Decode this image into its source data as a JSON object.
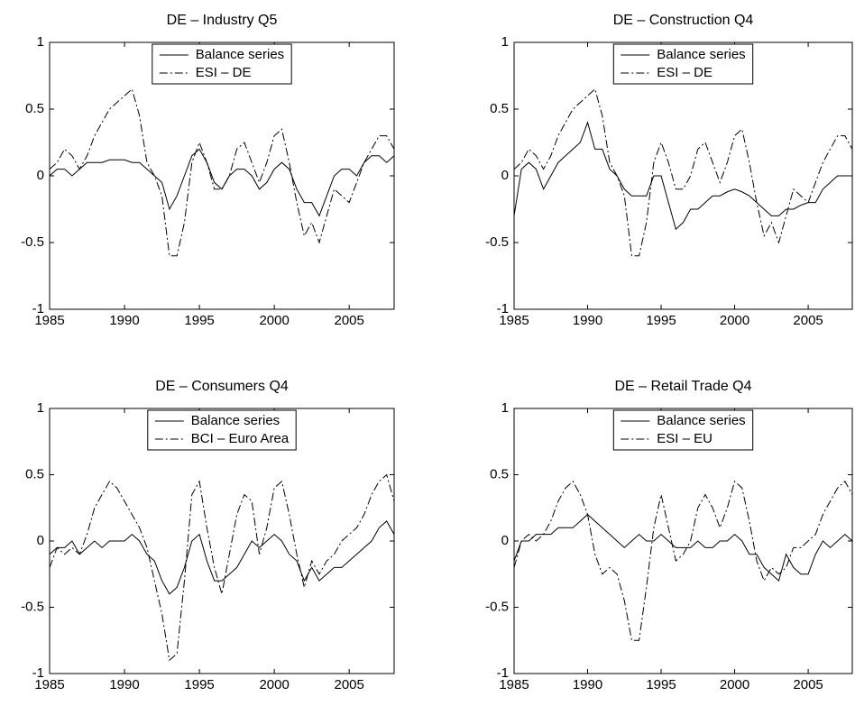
{
  "chart_data": [
    {
      "type": "line",
      "title": "DE – Industry Q5",
      "x": [
        1985,
        1985.5,
        1986,
        1986.5,
        1987,
        1987.5,
        1988,
        1988.5,
        1989,
        1989.5,
        1990,
        1990.5,
        1991,
        1991.5,
        1992,
        1992.5,
        1993,
        1993.5,
        1994,
        1994.5,
        1995,
        1995.5,
        1996,
        1996.5,
        1997,
        1997.5,
        1998,
        1998.5,
        1999,
        1999.5,
        2000,
        2000.5,
        2001,
        2001.5,
        2002,
        2002.5,
        2003,
        2003.5,
        2004,
        2004.5,
        2005,
        2005.5,
        2006,
        2006.5,
        2007,
        2007.5,
        2008
      ],
      "series": [
        {
          "name": "Balance series",
          "color": "#000000",
          "dash": "solid",
          "values": [
            0.0,
            0.05,
            0.05,
            0.0,
            0.05,
            0.1,
            0.1,
            0.1,
            0.12,
            0.12,
            0.12,
            0.1,
            0.1,
            0.05,
            0.0,
            -0.05,
            -0.25,
            -0.15,
            0.0,
            0.15,
            0.2,
            0.1,
            -0.05,
            -0.1,
            0.0,
            0.05,
            0.05,
            0.0,
            -0.1,
            -0.05,
            0.05,
            0.1,
            0.05,
            -0.1,
            -0.2,
            -0.2,
            -0.3,
            -0.15,
            0.0,
            0.05,
            0.05,
            0.0,
            0.1,
            0.15,
            0.15,
            0.1,
            0.15
          ]
        },
        {
          "name": "ESI – DE",
          "color": "#000000",
          "dash": "dashdot",
          "values": [
            0.05,
            0.1,
            0.2,
            0.15,
            0.05,
            0.15,
            0.3,
            0.4,
            0.5,
            0.55,
            0.6,
            0.65,
            0.45,
            0.1,
            0.0,
            -0.15,
            -0.6,
            -0.6,
            -0.35,
            0.1,
            0.25,
            0.1,
            -0.1,
            -0.1,
            0.0,
            0.2,
            0.25,
            0.1,
            -0.05,
            0.1,
            0.3,
            0.35,
            0.1,
            -0.2,
            -0.45,
            -0.35,
            -0.5,
            -0.3,
            -0.1,
            -0.15,
            -0.2,
            -0.05,
            0.1,
            0.2,
            0.3,
            0.3,
            0.2
          ]
        }
      ],
      "xlim": [
        1985,
        2008
      ],
      "xticks": [
        1985,
        1990,
        1995,
        2000,
        2005
      ],
      "ylim": [
        -1,
        1
      ],
      "yticks": [
        -1,
        -0.5,
        0,
        0.5,
        1
      ],
      "legend": "upper center"
    },
    {
      "type": "line",
      "title": "DE – Construction Q4",
      "x": [
        1985,
        1985.5,
        1986,
        1986.5,
        1987,
        1987.5,
        1988,
        1988.5,
        1989,
        1989.5,
        1990,
        1990.5,
        1991,
        1991.5,
        1992,
        1992.5,
        1993,
        1993.5,
        1994,
        1994.5,
        1995,
        1995.5,
        1996,
        1996.5,
        1997,
        1997.5,
        1998,
        1998.5,
        1999,
        1999.5,
        2000,
        2000.5,
        2001,
        2001.5,
        2002,
        2002.5,
        2003,
        2003.5,
        2004,
        2004.5,
        2005,
        2005.5,
        2006,
        2006.5,
        2007,
        2007.5,
        2008
      ],
      "series": [
        {
          "name": "Balance series",
          "color": "#000000",
          "dash": "solid",
          "values": [
            -0.3,
            0.05,
            0.1,
            0.05,
            -0.1,
            0.0,
            0.1,
            0.15,
            0.2,
            0.25,
            0.4,
            0.2,
            0.2,
            0.05,
            0.0,
            -0.1,
            -0.15,
            -0.15,
            -0.15,
            0.0,
            0.0,
            -0.2,
            -0.4,
            -0.35,
            -0.25,
            -0.25,
            -0.2,
            -0.15,
            -0.15,
            -0.12,
            -0.1,
            -0.12,
            -0.15,
            -0.2,
            -0.25,
            -0.3,
            -0.3,
            -0.25,
            -0.25,
            -0.22,
            -0.2,
            -0.2,
            -0.1,
            -0.05,
            0.0,
            0.0,
            0.0
          ]
        },
        {
          "name": "ESI – DE",
          "color": "#000000",
          "dash": "dashdot",
          "values": [
            0.05,
            0.1,
            0.2,
            0.15,
            0.05,
            0.15,
            0.3,
            0.4,
            0.5,
            0.55,
            0.6,
            0.65,
            0.45,
            0.1,
            0.0,
            -0.15,
            -0.6,
            -0.6,
            -0.35,
            0.1,
            0.25,
            0.1,
            -0.1,
            -0.1,
            0.0,
            0.2,
            0.25,
            0.1,
            -0.05,
            0.1,
            0.3,
            0.35,
            0.1,
            -0.2,
            -0.45,
            -0.35,
            -0.5,
            -0.3,
            -0.1,
            -0.15,
            -0.2,
            -0.05,
            0.1,
            0.2,
            0.3,
            0.3,
            0.2
          ]
        }
      ],
      "xlim": [
        1985,
        2008
      ],
      "xticks": [
        1985,
        1990,
        1995,
        2000,
        2005
      ],
      "ylim": [
        -1,
        1
      ],
      "yticks": [
        -1,
        -0.5,
        0,
        0.5,
        1
      ],
      "legend": "upper center"
    },
    {
      "type": "line",
      "title": "DE – Consumers Q4",
      "x": [
        1985,
        1985.5,
        1986,
        1986.5,
        1987,
        1987.5,
        1988,
        1988.5,
        1989,
        1989.5,
        1990,
        1990.5,
        1991,
        1991.5,
        1992,
        1992.5,
        1993,
        1993.5,
        1994,
        1994.5,
        1995,
        1995.5,
        1996,
        1996.5,
        1997,
        1997.5,
        1998,
        1998.5,
        1999,
        1999.5,
        2000,
        2000.5,
        2001,
        2001.5,
        2002,
        2002.5,
        2003,
        2003.5,
        2004,
        2004.5,
        2005,
        2005.5,
        2006,
        2006.5,
        2007,
        2007.5,
        2008
      ],
      "series": [
        {
          "name": "Balance series",
          "color": "#000000",
          "dash": "solid",
          "values": [
            -0.1,
            -0.05,
            -0.05,
            0.0,
            -0.1,
            -0.05,
            0.0,
            -0.05,
            0.0,
            0.0,
            0.0,
            0.05,
            0.0,
            -0.1,
            -0.15,
            -0.3,
            -0.4,
            -0.35,
            -0.2,
            0.0,
            0.05,
            -0.15,
            -0.3,
            -0.3,
            -0.25,
            -0.2,
            -0.1,
            0.0,
            -0.05,
            0.0,
            0.05,
            0.0,
            -0.1,
            -0.15,
            -0.3,
            -0.2,
            -0.3,
            -0.25,
            -0.2,
            -0.2,
            -0.15,
            -0.1,
            -0.05,
            0.0,
            0.1,
            0.15,
            0.05
          ]
        },
        {
          "name": "BCI – Euro Area",
          "color": "#000000",
          "dash": "dashdot",
          "values": [
            -0.2,
            -0.05,
            -0.1,
            -0.05,
            -0.1,
            0.05,
            0.25,
            0.35,
            0.45,
            0.4,
            0.3,
            0.2,
            0.1,
            -0.05,
            -0.3,
            -0.55,
            -0.9,
            -0.85,
            -0.3,
            0.35,
            0.45,
            0.1,
            -0.2,
            -0.4,
            -0.1,
            0.2,
            0.35,
            0.3,
            -0.1,
            0.1,
            0.4,
            0.45,
            0.2,
            -0.1,
            -0.35,
            -0.15,
            -0.25,
            -0.15,
            -0.1,
            0.0,
            0.05,
            0.1,
            0.2,
            0.35,
            0.45,
            0.5,
            0.3
          ]
        }
      ],
      "xlim": [
        1985,
        2008
      ],
      "xticks": [
        1985,
        1990,
        1995,
        2000,
        2005
      ],
      "ylim": [
        -1,
        1
      ],
      "yticks": [
        -1,
        -0.5,
        0,
        0.5,
        1
      ],
      "legend": "upper center"
    },
    {
      "type": "line",
      "title": "DE – Retail Trade Q4",
      "x": [
        1985,
        1985.5,
        1986,
        1986.5,
        1987,
        1987.5,
        1988,
        1988.5,
        1989,
        1989.5,
        1990,
        1990.5,
        1991,
        1991.5,
        1992,
        1992.5,
        1993,
        1993.5,
        1994,
        1994.5,
        1995,
        1995.5,
        1996,
        1996.5,
        1997,
        1997.5,
        1998,
        1998.5,
        1999,
        1999.5,
        2000,
        2000.5,
        2001,
        2001.5,
        2002,
        2002.5,
        2003,
        2003.5,
        2004,
        2004.5,
        2005,
        2005.5,
        2006,
        2006.5,
        2007,
        2007.5,
        2008
      ],
      "series": [
        {
          "name": "Balance series",
          "color": "#000000",
          "dash": "solid",
          "values": [
            -0.15,
            0.0,
            0.0,
            0.05,
            0.05,
            0.05,
            0.1,
            0.1,
            0.1,
            0.15,
            0.2,
            0.15,
            0.1,
            0.05,
            0.0,
            -0.05,
            0.0,
            0.05,
            0.0,
            0.0,
            0.05,
            0.0,
            -0.05,
            -0.05,
            -0.05,
            0.0,
            -0.05,
            -0.05,
            0.0,
            0.0,
            0.05,
            0.0,
            -0.1,
            -0.1,
            -0.2,
            -0.25,
            -0.3,
            -0.1,
            -0.2,
            -0.25,
            -0.25,
            -0.1,
            0.0,
            -0.05,
            0.0,
            0.05,
            0.0
          ]
        },
        {
          "name": "ESI – EU",
          "color": "#000000",
          "dash": "dashdot",
          "values": [
            -0.2,
            0.0,
            0.05,
            0.0,
            0.05,
            0.15,
            0.3,
            0.4,
            0.45,
            0.35,
            0.2,
            -0.1,
            -0.25,
            -0.2,
            -0.25,
            -0.45,
            -0.75,
            -0.75,
            -0.35,
            0.1,
            0.35,
            0.1,
            -0.15,
            -0.1,
            0.0,
            0.25,
            0.35,
            0.25,
            0.1,
            0.25,
            0.45,
            0.4,
            0.15,
            -0.15,
            -0.3,
            -0.2,
            -0.25,
            -0.2,
            -0.05,
            -0.05,
            0.0,
            0.05,
            0.2,
            0.3,
            0.4,
            0.45,
            0.35
          ]
        }
      ],
      "xlim": [
        1985,
        2008
      ],
      "xticks": [
        1985,
        1990,
        1995,
        2000,
        2005
      ],
      "ylim": [
        -1,
        1
      ],
      "yticks": [
        -1,
        -0.5,
        0,
        0.5,
        1
      ],
      "legend": "upper center"
    }
  ]
}
